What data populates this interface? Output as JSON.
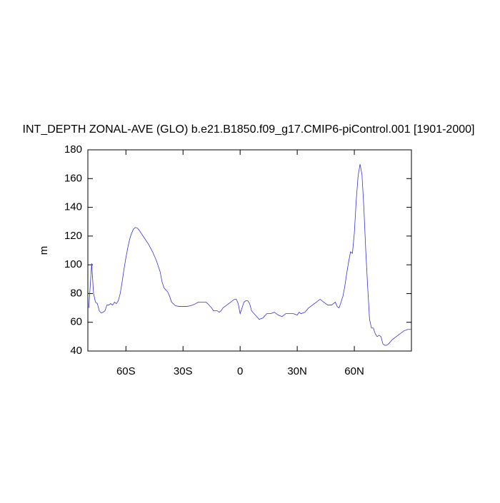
{
  "chart_data": {
    "type": "line",
    "title": "INT_DEPTH ZONAL-AVE (GLO) b.e21.B1850.f09_g17.CMIP6-piControl.001 [1901-2000]",
    "ylabel": "m",
    "x": [
      -79.5,
      -78,
      -77,
      -76,
      -75,
      -74,
      -73,
      -72,
      -71,
      -70,
      -69,
      -68,
      -67,
      -66,
      -65,
      -64,
      -63,
      -62,
      -61,
      -60,
      -59,
      -58,
      -57,
      -56,
      -55,
      -54,
      -53,
      -52,
      -50,
      -48,
      -46,
      -44,
      -42,
      -41,
      -40,
      -38,
      -37,
      -36,
      -34,
      -32,
      -30,
      -28,
      -26,
      -24,
      -22,
      -20,
      -18,
      -17,
      -15,
      -14,
      -12,
      -11,
      -10,
      -9,
      -7,
      -5,
      -3,
      -2,
      -1,
      0,
      1,
      2,
      3,
      4,
      5,
      6,
      8,
      10,
      12,
      14,
      16,
      18,
      20,
      22,
      24,
      26,
      28,
      30,
      31,
      32,
      34,
      36,
      38,
      40,
      42,
      44,
      46,
      48,
      50,
      51,
      52,
      54,
      55,
      56,
      57,
      58,
      59,
      60,
      61,
      62,
      63,
      64,
      65,
      66,
      67,
      68,
      69,
      70,
      71,
      72,
      73,
      74,
      75,
      76,
      77,
      78,
      80,
      82,
      84,
      86,
      88,
      90
    ],
    "series": [
      {
        "name": "INT_DEPTH",
        "color": "#3333dd",
        "values": [
          70,
          101,
          80,
          74,
          73,
          68,
          66.5,
          67,
          68,
          72,
          72,
          73,
          72,
          74,
          73,
          75,
          80,
          88,
          97,
          105,
          112,
          118,
          122,
          125,
          126,
          125.5,
          124,
          122,
          118,
          114,
          109,
          103,
          95,
          88,
          84,
          81,
          78,
          74,
          71.5,
          71,
          71,
          71,
          71.5,
          72.5,
          74,
          74,
          74,
          73,
          70,
          68,
          68,
          67,
          68,
          70,
          72,
          74,
          76,
          76,
          73,
          66,
          70,
          74,
          75,
          75,
          73,
          68,
          65,
          62,
          63,
          66,
          66,
          67,
          65,
          64,
          66,
          66,
          66,
          65,
          67,
          66,
          67,
          70,
          72,
          74,
          76,
          74,
          72,
          72,
          74,
          71,
          70,
          78,
          85,
          94,
          102,
          109,
          108,
          122,
          145,
          162,
          170,
          163,
          140,
          110,
          85,
          62,
          56,
          56,
          52,
          50,
          51,
          50,
          45,
          44,
          44,
          45,
          48,
          50,
          52,
          54,
          55,
          55
        ]
      }
    ],
    "xlim": [
      -80,
      90
    ],
    "xticks": [
      {
        "value": -60,
        "label": "60S"
      },
      {
        "value": -30,
        "label": "30S"
      },
      0,
      {
        "value": 30,
        "label": "30N"
      },
      {
        "value": 60,
        "label": "60N"
      }
    ],
    "ylim": [
      40,
      180
    ],
    "yticks": [
      40,
      60,
      80,
      100,
      120,
      140,
      160,
      180
    ]
  }
}
